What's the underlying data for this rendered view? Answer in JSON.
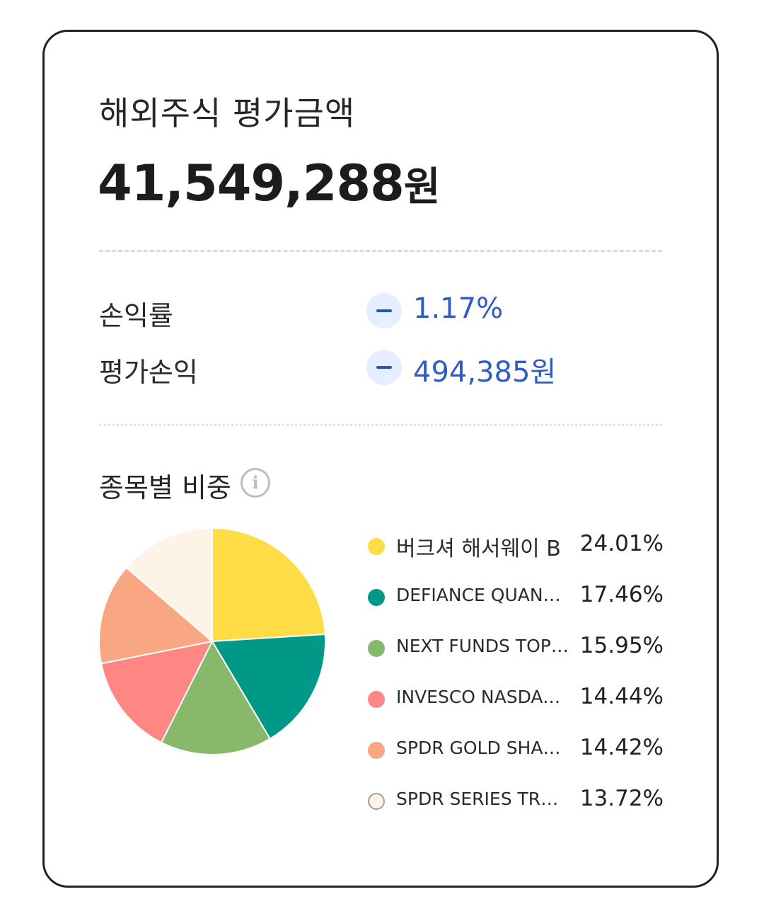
{
  "header": {
    "title": "해외주식 평가금액",
    "amount": "41,549,288",
    "amount_unit": "원"
  },
  "stats": [
    {
      "label": "손익률",
      "sign": "−",
      "value": "1.17%"
    },
    {
      "label": "평가손익",
      "sign": "−",
      "value": "494,385원"
    }
  ],
  "allocation": {
    "title": "종목별 비중",
    "info_icon": "info-circle-icon"
  },
  "chart_data": {
    "type": "pie",
    "categories": [
      "버크셔 해서웨이 B",
      "DEFIANCE QUANTUM",
      "NEXT FUNDS TOPIX...",
      "INVESCO NASDAQ ...",
      "SPDR GOLD SHARE...",
      "SPDR SERIES TRUST..."
    ],
    "values": [
      24.01,
      17.46,
      15.95,
      14.44,
      14.42,
      13.72
    ],
    "labels": [
      "24.01%",
      "17.46%",
      "15.95%",
      "14.44%",
      "14.42%",
      "13.72%"
    ],
    "colors": [
      "#fddc45",
      "#009886",
      "#88b96b",
      "#fe8683",
      "#f9a683",
      "#fdf3e6"
    ],
    "start_angle": "12-o'clock",
    "direction": "clockwise",
    "legend": "right"
  }
}
